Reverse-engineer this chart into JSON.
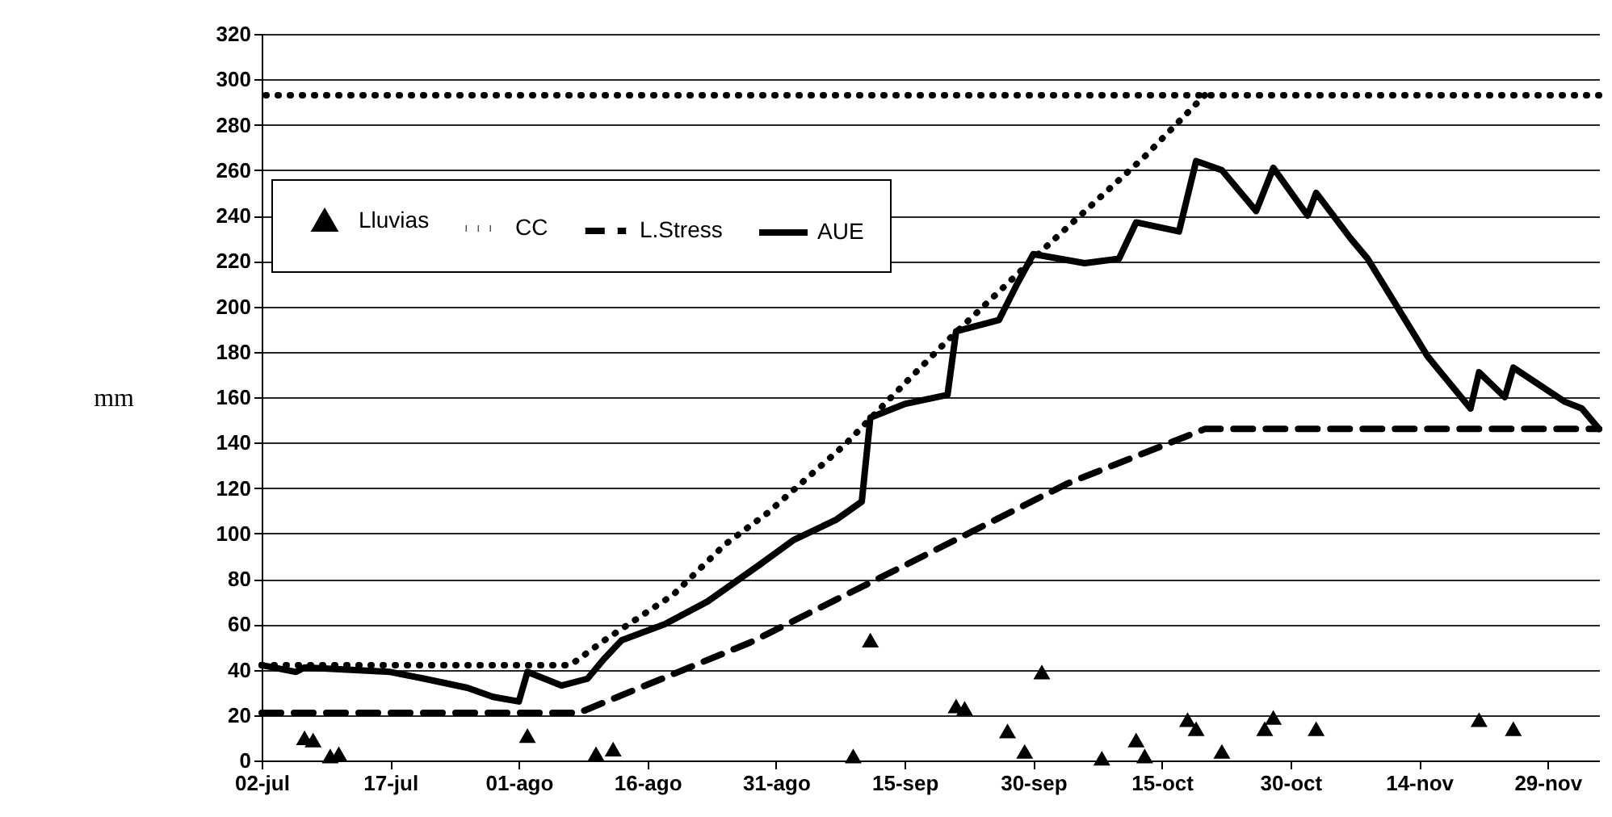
{
  "chart_data": {
    "type": "line",
    "ylabel": "mm",
    "xlim": [
      "--07-02",
      "--12-05"
    ],
    "xticks": [
      {
        "value": "--07-02",
        "label": "02-jul"
      },
      {
        "value": "--07-17",
        "label": "17-jul"
      },
      {
        "value": "--08-01",
        "label": "01-ago"
      },
      {
        "value": "--08-16",
        "label": "16-ago"
      },
      {
        "value": "--08-31",
        "label": "31-ago"
      },
      {
        "value": "--09-15",
        "label": "15-sep"
      },
      {
        "value": "--09-30",
        "label": "30-sep"
      },
      {
        "value": "--10-15",
        "label": "15-oct"
      },
      {
        "value": "--10-30",
        "label": "30-oct"
      },
      {
        "value": "--11-14",
        "label": "14-nov"
      },
      {
        "value": "--11-29",
        "label": "29-nov"
      }
    ],
    "ylim": [
      0,
      320
    ],
    "yticks": [
      0,
      20,
      40,
      60,
      80,
      100,
      120,
      140,
      160,
      180,
      200,
      220,
      240,
      260,
      280,
      300,
      320
    ],
    "grid": "y",
    "legend": "top left",
    "ref_lines": [
      {
        "axis": "y",
        "value": 293,
        "color": "#000000",
        "line_style": "dotted"
      }
    ],
    "series": [
      {
        "name": "Lluvias",
        "type": "scatter",
        "marker": "triangle",
        "color": "#000000",
        "x": [
          "--07-07",
          "--07-08",
          "--07-10",
          "--07-11",
          "--08-02",
          "--08-10",
          "--08-12",
          "--09-09",
          "--09-11",
          "--09-21",
          "--09-22",
          "--09-27",
          "--09-29",
          "--10-01",
          "--10-08",
          "--10-12",
          "--10-13",
          "--10-18",
          "--10-19",
          "--10-22",
          "--10-27",
          "--10-28",
          "--11-02",
          "--11-21",
          "--11-25"
        ],
        "values": [
          10,
          9,
          2,
          3,
          11,
          3,
          5,
          2,
          53,
          24,
          23,
          13,
          4,
          39,
          1,
          9,
          2,
          18,
          14,
          4,
          14,
          19,
          14,
          18,
          14
        ]
      },
      {
        "name": "CC",
        "type": "line",
        "line_style": "dotted",
        "color": "#000000",
        "x": [
          "--07-02",
          "--08-07",
          "--08-11",
          "--08-19",
          "--08-25",
          "--08-30",
          "--09-08",
          "--09-15",
          "--09-20",
          "--10-02",
          "--10-13",
          "--10-20"
        ],
        "values": [
          42,
          42,
          53,
          73,
          95,
          109,
          139,
          166,
          185,
          228,
          266,
          293
        ]
      },
      {
        "name": "L.Stress",
        "type": "line",
        "line_style": "dashed",
        "color": "#000000",
        "x": [
          "--07-02",
          "--08-08",
          "--08-28",
          "--09-14",
          "--10-04",
          "--10-20",
          "--12-05"
        ],
        "values": [
          21,
          21,
          52,
          84,
          122,
          146,
          146
        ]
      },
      {
        "name": "AUE",
        "type": "line",
        "line_style": "solid",
        "color": "#000000",
        "x": [
          "--07-02",
          "--07-06",
          "--07-07",
          "--07-17",
          "--07-21",
          "--07-26",
          "--07-29",
          "--08-01",
          "--08-02",
          "--08-06",
          "--08-09",
          "--08-11",
          "--08-13",
          "--08-18",
          "--08-23",
          "--08-29",
          "--09-02",
          "--09-07",
          "--09-10",
          "--09-11",
          "--09-15",
          "--09-20",
          "--09-21",
          "--09-26",
          "--09-28",
          "--09-30",
          "--10-06",
          "--10-10",
          "--10-12",
          "--10-17",
          "--10-19",
          "--10-22",
          "--10-26",
          "--10-28",
          "--11-01",
          "--11-02",
          "--11-06",
          "--11-08",
          "--11-15",
          "--11-20",
          "--11-21",
          "--11-24",
          "--11-25",
          "--12-01",
          "--12-03",
          "--12-05"
        ],
        "values": [
          42,
          39,
          41,
          39,
          36,
          32,
          28,
          26,
          39,
          33,
          36,
          45,
          53,
          60,
          70,
          86,
          97,
          106,
          114,
          151,
          157,
          161,
          189,
          194,
          209,
          223,
          219,
          221,
          237,
          233,
          264,
          260,
          242,
          261,
          240,
          250,
          230,
          221,
          178,
          155,
          171,
          160,
          173,
          158,
          155,
          146
        ]
      }
    ]
  }
}
